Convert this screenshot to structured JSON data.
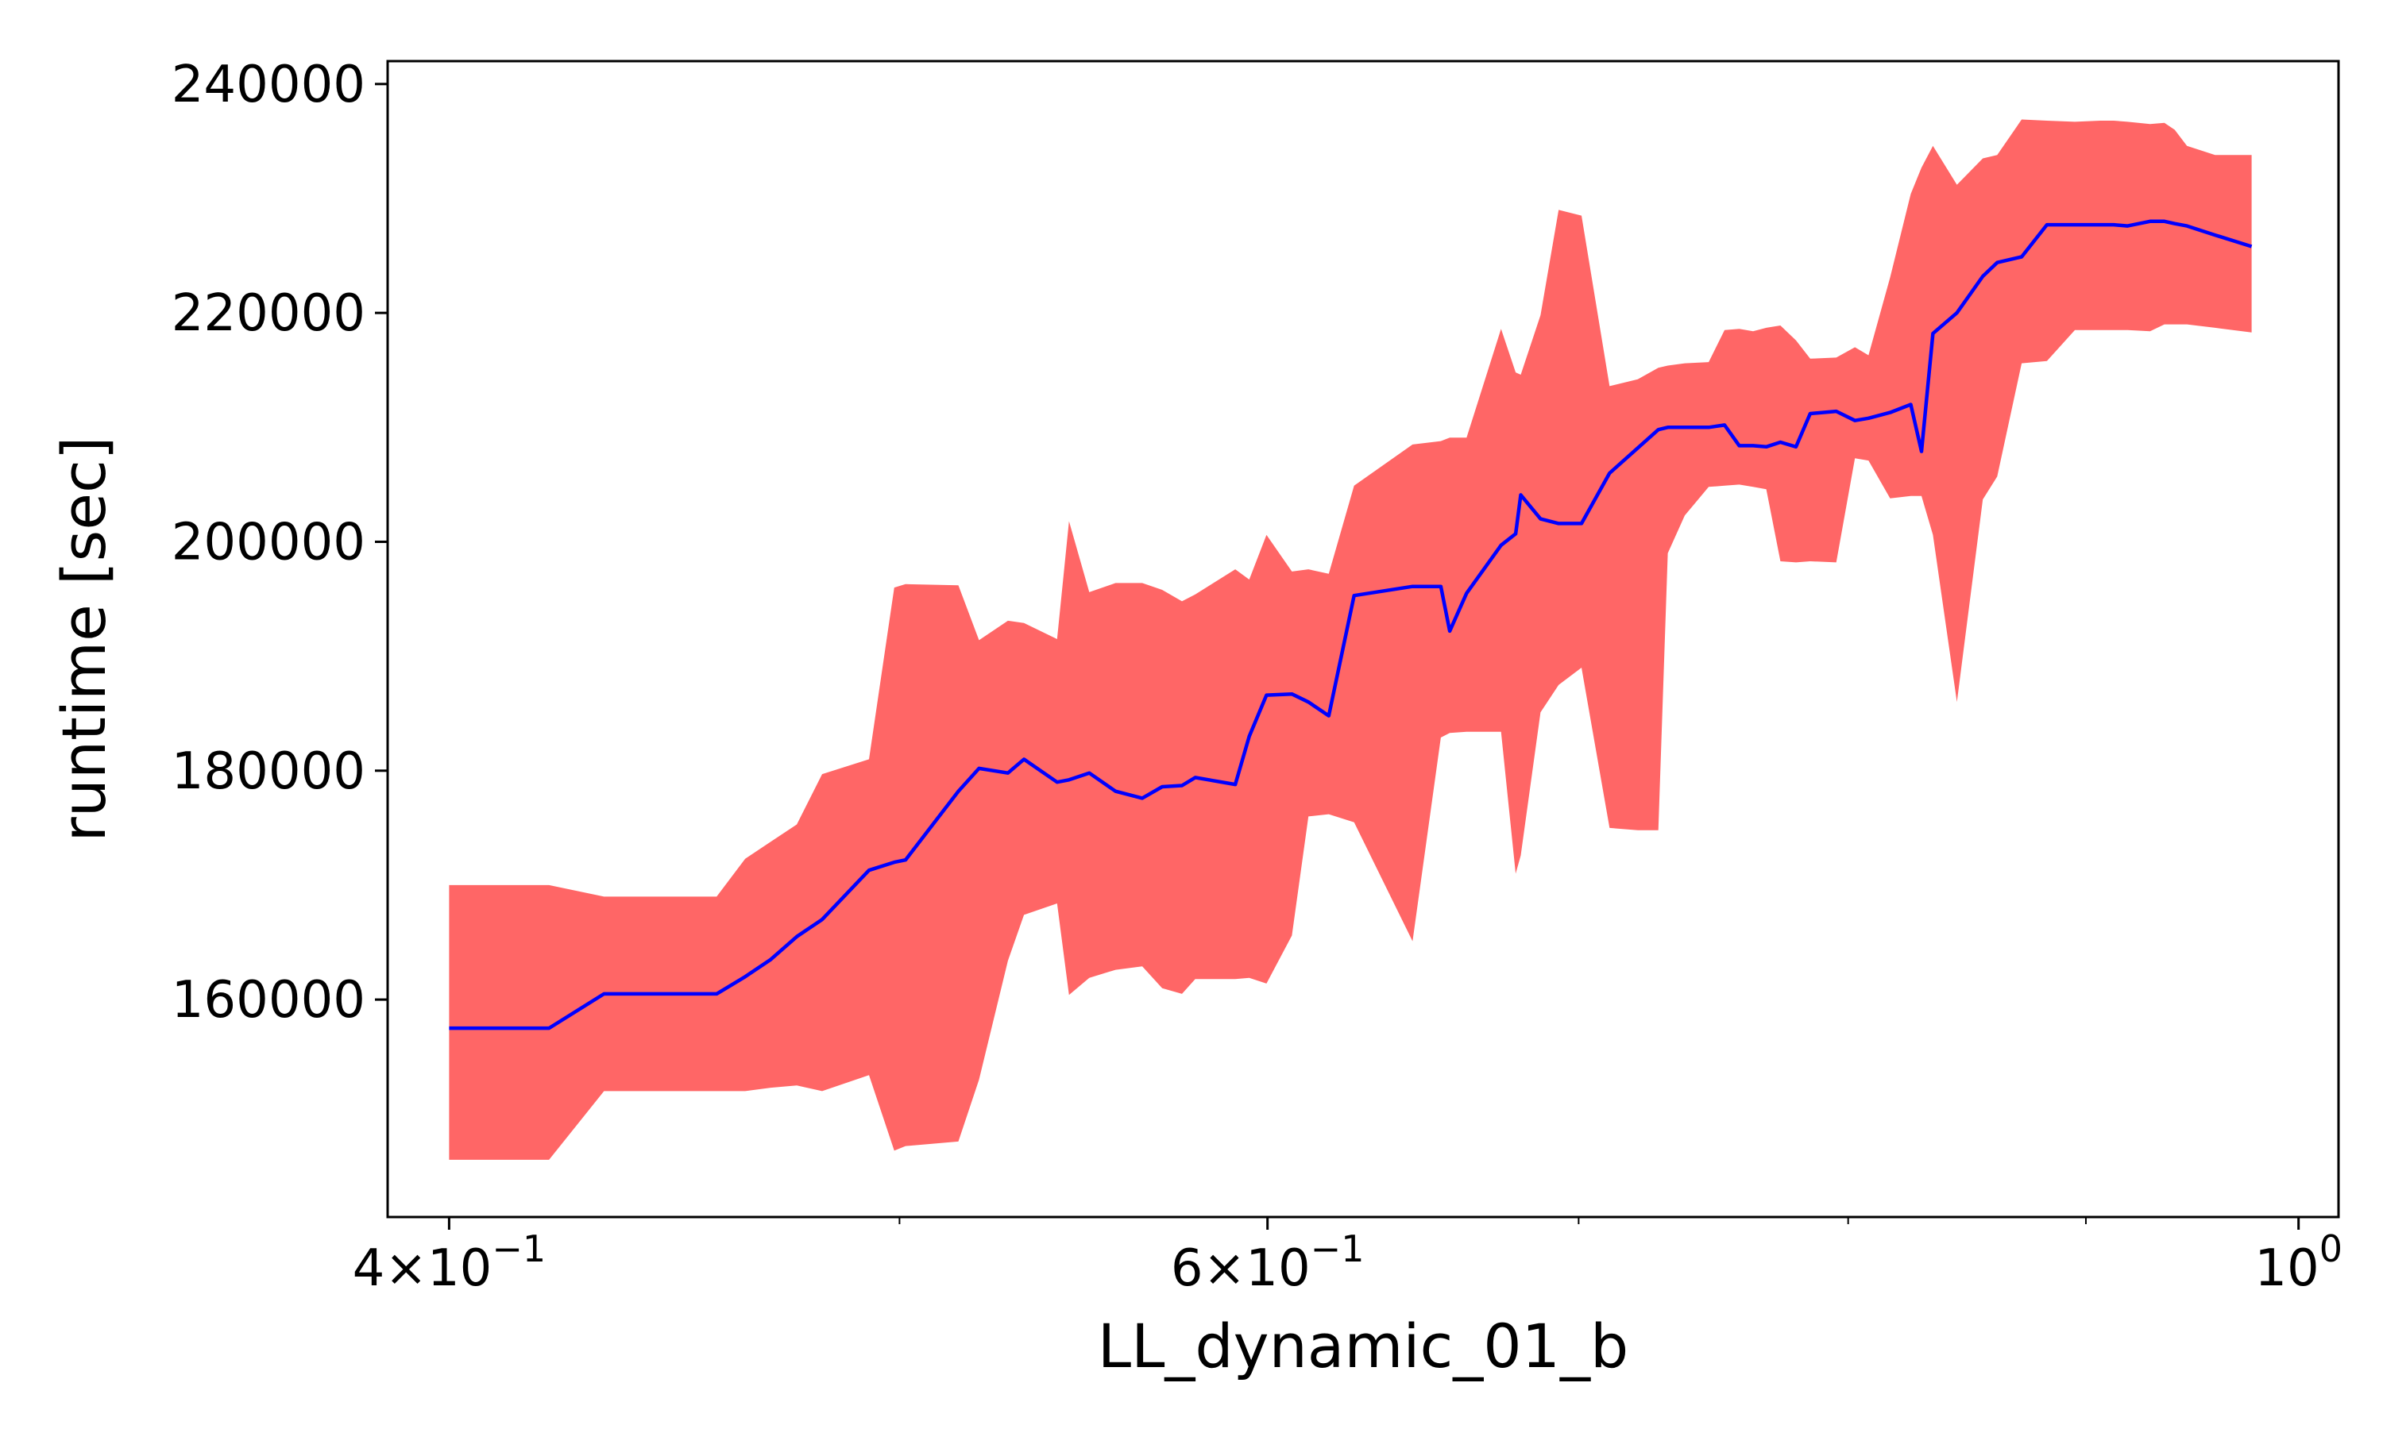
{
  "chart_data": {
    "type": "area",
    "title": "",
    "xlabel": "LL_dynamic_01_b",
    "ylabel": "runtime [sec]",
    "xscale": "log",
    "xlim": [
      0.388,
      1.02
    ],
    "ylim": [
      141000,
      242000
    ],
    "grid": false,
    "legend": "none",
    "colors": {
      "line": "#0000ff",
      "band": "#ff6666"
    },
    "yticks": [
      {
        "value": 160000,
        "label": "160000"
      },
      {
        "value": 180000,
        "label": "180000"
      },
      {
        "value": 200000,
        "label": "200000"
      },
      {
        "value": 220000,
        "label": "220000"
      },
      {
        "value": 240000,
        "label": "240000"
      }
    ],
    "xticks_major": [
      {
        "value": 0.4,
        "base": "4×10",
        "exp": "−1"
      },
      {
        "value": 0.6,
        "base": "6×10",
        "exp": "−1"
      },
      {
        "value": 1.0,
        "base": "10",
        "exp": "0"
      }
    ],
    "xticks_minor": [
      0.5,
      0.7,
      0.8,
      0.9
    ],
    "x": [
      0.4,
      0.4186,
      0.4203,
      0.4319,
      0.4537,
      0.4567,
      0.4632,
      0.4691,
      0.4752,
      0.4812,
      0.4925,
      0.4987,
      0.5015,
      0.5148,
      0.5201,
      0.5276,
      0.5318,
      0.5406,
      0.5438,
      0.5493,
      0.5565,
      0.5639,
      0.5695,
      0.5751,
      0.5789,
      0.5905,
      0.5946,
      0.5997,
      0.6073,
      0.6123,
      0.6185,
      0.6263,
      0.6447,
      0.6538,
      0.6567,
      0.6622,
      0.6736,
      0.6785,
      0.6802,
      0.6869,
      0.6931,
      0.701,
      0.7108,
      0.7208,
      0.7282,
      0.7316,
      0.7378,
      0.7466,
      0.7525,
      0.758,
      0.7632,
      0.7682,
      0.7736,
      0.7796,
      0.7851,
      0.7953,
      0.8027,
      0.8081,
      0.8168,
      0.8252,
      0.8296,
      0.8343,
      0.8443,
      0.8552,
      0.8613,
      0.8718,
      0.8828,
      0.8951,
      0.9064,
      0.9125,
      0.9188,
      0.9291,
      0.9357,
      0.9405,
      0.9462,
      0.9595,
      0.977
    ],
    "series": [
      {
        "name": "",
        "role": "mean",
        "values": [
          157500,
          157500,
          157500,
          160500,
          160500,
          160500,
          162000,
          163500,
          165500,
          167000,
          171300,
          172000,
          172200,
          178200,
          180200,
          179800,
          181000,
          179000,
          179200,
          179800,
          178200,
          177600,
          178600,
          178700,
          179400,
          178800,
          183000,
          186600,
          186700,
          186000,
          184800,
          195300,
          196100,
          196100,
          192200,
          195500,
          199700,
          200700,
          204100,
          202000,
          201600,
          201600,
          206000,
          208200,
          209800,
          210000,
          210000,
          210000,
          210200,
          208400,
          208400,
          208300,
          208700,
          208300,
          211200,
          211400,
          210600,
          210800,
          211300,
          212000,
          207900,
          218200,
          220000,
          223200,
          224400,
          224900,
          227700,
          227700,
          227700,
          227700,
          227600,
          228000,
          228000,
          227800,
          227600,
          226800,
          225800
        ]
      },
      {
        "name": "",
        "role": "upper",
        "values": [
          170000,
          170000,
          170000,
          169000,
          169000,
          169000,
          172300,
          173800,
          175300,
          179700,
          181000,
          196000,
          196300,
          196200,
          191400,
          193100,
          192900,
          191500,
          201800,
          195600,
          196400,
          196400,
          195800,
          194800,
          195400,
          197600,
          196700,
          200600,
          197400,
          197600,
          197200,
          204900,
          208500,
          208800,
          209100,
          209100,
          218600,
          214800,
          214600,
          219800,
          229000,
          228500,
          213600,
          214200,
          215200,
          215400,
          215600,
          215700,
          218500,
          218600,
          218400,
          218700,
          218900,
          217600,
          216000,
          216100,
          217000,
          216300,
          223100,
          230400,
          232700,
          234600,
          231200,
          233500,
          233800,
          236900,
          236800,
          236700,
          236800,
          236800,
          236700,
          236500,
          236600,
          236000,
          234600,
          233800,
          233800
        ]
      },
      {
        "name": "",
        "role": "lower",
        "values": [
          146000,
          146000,
          146000,
          152000,
          152000,
          152000,
          152000,
          152300,
          152500,
          152000,
          153400,
          146800,
          147200,
          147600,
          153000,
          163400,
          167400,
          168400,
          160400,
          161900,
          162600,
          162900,
          161000,
          160500,
          161800,
          161800,
          161900,
          161400,
          165600,
          176000,
          176200,
          175500,
          165100,
          182900,
          183300,
          183400,
          183400,
          171000,
          172600,
          185100,
          187500,
          189000,
          175000,
          174800,
          174800,
          199000,
          202300,
          204800,
          204900,
          205000,
          204800,
          204600,
          198300,
          198200,
          198300,
          198200,
          207300,
          207100,
          203800,
          204000,
          204000,
          200600,
          186000,
          203700,
          205700,
          215600,
          215800,
          218500,
          218500,
          218500,
          218500,
          218400,
          219000,
          219000,
          219000,
          218700,
          218300
        ]
      }
    ]
  }
}
